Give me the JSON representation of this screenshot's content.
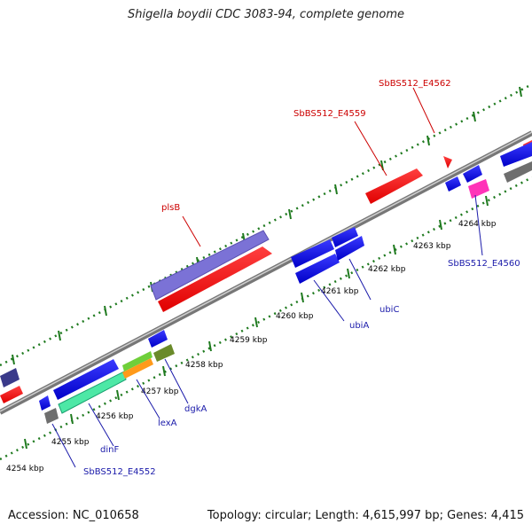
{
  "title": "Shigella boydii CDC 3083-94, complete genome",
  "footer": {
    "accession": "Accession: NC_010658",
    "topology": "Topology: circular; Length: 4,615,997 bp; Genes: 4,415"
  },
  "colors": {
    "backbone": "#8c8c8c",
    "forward_gene": "#0000e6",
    "reverse_gene": "#ff1a1a",
    "rRNA": "#7b72d6",
    "tick_dots": "#1f7a1f",
    "label_blue": "#1a1aaa",
    "label_red": "#cc0000"
  },
  "ticks": [
    {
      "label": "4254 kbp"
    },
    {
      "label": "4255 kbp"
    },
    {
      "label": "4256 kbp"
    },
    {
      "label": "4257 kbp"
    },
    {
      "label": "4258 kbp"
    },
    {
      "label": "4259 kbp"
    },
    {
      "label": "4260 kbp"
    },
    {
      "label": "4261 kbp"
    },
    {
      "label": "4262 kbp"
    },
    {
      "label": "4263 kbp"
    },
    {
      "label": "4264 kbp"
    }
  ],
  "gene_labels": {
    "sbbs512_e4552": "SbBS512_E4552",
    "dinF": "dinF",
    "lexA": "lexA",
    "dgkA": "dgkA",
    "ubiA": "ubiA",
    "ubiC": "ubiC",
    "sbbs512_e4560": "SbBS512_E4560",
    "plsB": "plsB",
    "sbbs512_e4559": "SbBS512_E4559",
    "sbbs512_e4562": "SbBS512_E4562"
  }
}
